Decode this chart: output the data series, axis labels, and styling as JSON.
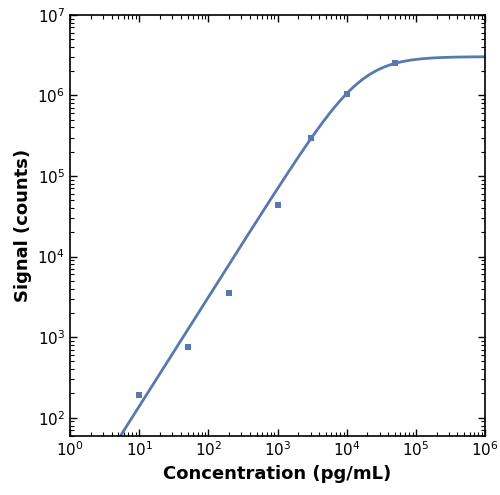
{
  "x_data": [
    10,
    50,
    200,
    1000,
    3000,
    10000,
    50000
  ],
  "y_data": [
    190,
    750,
    3500,
    44000,
    300000,
    1050000,
    2500000
  ],
  "xlim": [
    1,
    1000000
  ],
  "ylim": [
    60,
    10000000
  ],
  "xlabel": "Concentration (pg/mL)",
  "ylabel": "Signal (counts)",
  "line_color": "#5878b0",
  "marker_color": "#5878b0",
  "marker": "s",
  "marker_size": 5,
  "linewidth": 2.0,
  "background_color": "#ffffff",
  "axis_color": "#000000",
  "tick_color": "#000000",
  "xlabel_fontsize": 13,
  "ylabel_fontsize": 13,
  "tick_fontsize": 11
}
